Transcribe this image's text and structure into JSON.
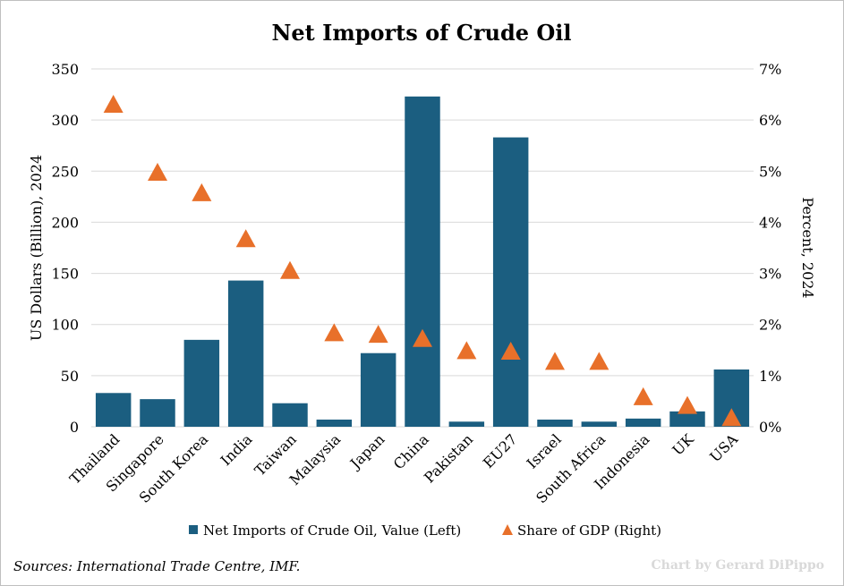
{
  "chart_data": {
    "type": "bar",
    "title": "Net Imports of Crude Oil",
    "categories": [
      "Thailand",
      "Singapore",
      "South Korea",
      "India",
      "Taiwan",
      "Malaysia",
      "Japan",
      "China",
      "Pakistan",
      "EU27",
      "Israel",
      "South Africa",
      "Indonesia",
      "UK",
      "USA"
    ],
    "series": [
      {
        "name": "Net Imports of Crude Oil, Value (Left)",
        "type": "bar",
        "axis": "left",
        "color": "#1b5e80",
        "values": [
          33,
          27,
          85,
          143,
          23,
          7,
          72,
          323,
          5,
          283,
          7,
          5,
          8,
          15,
          56
        ]
      },
      {
        "name": "Share of GDP (Right)",
        "type": "scatter",
        "marker": "triangle",
        "axis": "right",
        "color": "#e8702a",
        "values": [
          6.3,
          4.97,
          4.57,
          3.67,
          3.05,
          1.83,
          1.8,
          1.72,
          1.48,
          1.47,
          1.27,
          1.27,
          0.58,
          0.41,
          0.17
        ]
      }
    ],
    "ylabel_left": "US Dollars (Billion), 2024",
    "ylabel_right": "Percent, 2024",
    "ylim_left": [
      0,
      350
    ],
    "yticks_left": [
      "0",
      "50",
      "100",
      "150",
      "200",
      "250",
      "300",
      "350"
    ],
    "ylim_right": [
      0,
      7
    ],
    "yticks_right": [
      "0%",
      "1%",
      "2%",
      "3%",
      "4%",
      "5%",
      "6%",
      "7%"
    ],
    "grid": true,
    "legend": "bottom"
  },
  "footer": {
    "source": "Sources: International Trade Centre, IMF.",
    "credit": "Chart by Gerard DiPippo"
  }
}
